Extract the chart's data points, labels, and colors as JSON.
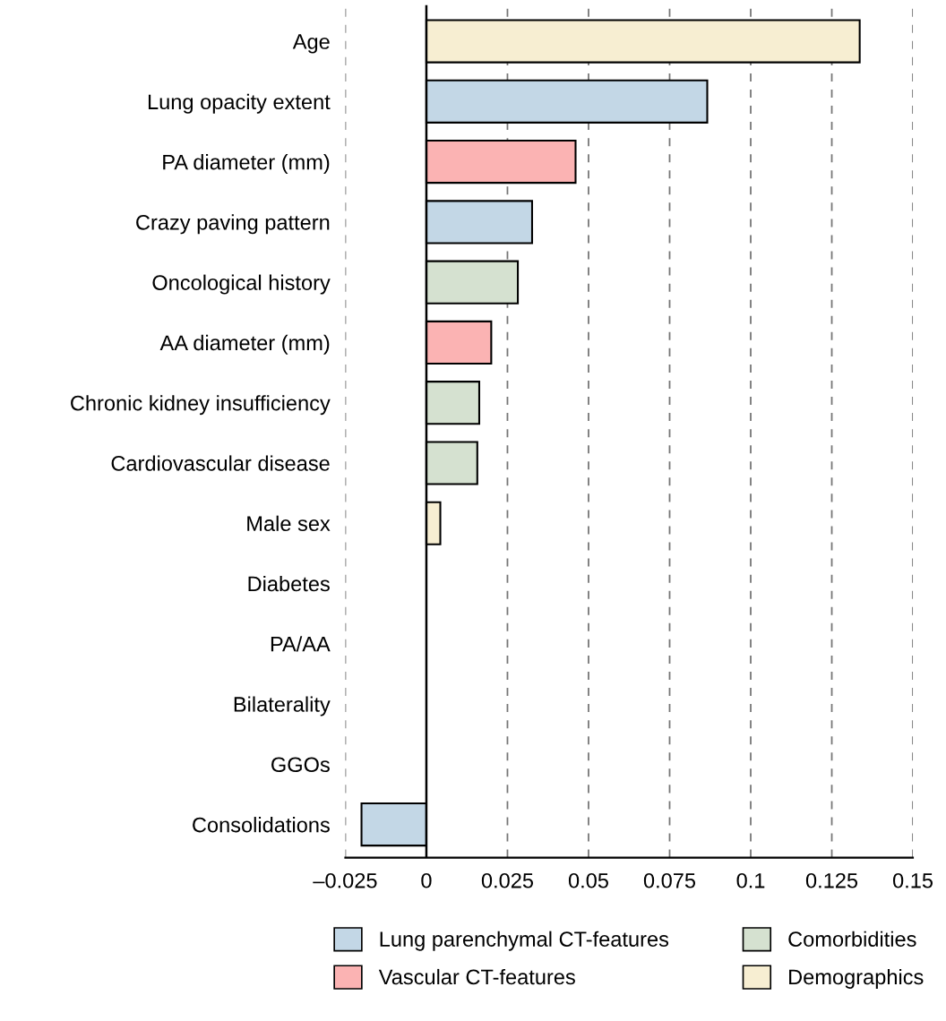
{
  "chart_data": {
    "type": "bar",
    "orientation": "horizontal",
    "categories": [
      "Age",
      "Lung opacity extent",
      "PA diameter (mm)",
      "Crazy paving pattern",
      "Oncological history",
      "AA diameter (mm)",
      "Chronic kidney insufficiency",
      "Cardiovascular disease",
      "Male sex",
      "Diabetes",
      "PA/AA",
      "Bilaterality",
      "GGOs",
      "Consolidations"
    ],
    "series": [
      {
        "name": "Lung parenchymal CT-features",
        "color": "#c3d7e6",
        "values": [
          null,
          0.0866,
          null,
          0.0326,
          null,
          null,
          null,
          null,
          null,
          null,
          null,
          null,
          null,
          -0.02
        ]
      },
      {
        "name": "Vascular CT-features",
        "color": "#fbb3b3",
        "values": [
          null,
          null,
          0.046,
          null,
          null,
          0.02,
          null,
          null,
          null,
          null,
          null,
          null,
          null,
          null
        ]
      },
      {
        "name": "Comorbidities",
        "color": "#d5e1d0",
        "values": [
          null,
          null,
          null,
          null,
          0.0282,
          null,
          0.0163,
          0.0157,
          null,
          null,
          null,
          null,
          null,
          null
        ]
      },
      {
        "name": "Demographics",
        "color": "#f7eed2",
        "values": [
          0.1336,
          null,
          null,
          null,
          null,
          null,
          null,
          null,
          0.0043,
          null,
          null,
          null,
          null,
          null
        ]
      }
    ],
    "xlim": [
      -0.025,
      0.15
    ],
    "xticks": [
      {
        "value": -0.025,
        "label": "–0.025"
      },
      0,
      0.025,
      0.05,
      0.075,
      0.1,
      0.125,
      0.15
    ],
    "ref_lines": [
      {
        "axis": "x",
        "value": 0,
        "color": "#000000",
        "line_style": "solid"
      }
    ],
    "grid": "x",
    "line_style": "dashed",
    "legend": "bottom"
  }
}
